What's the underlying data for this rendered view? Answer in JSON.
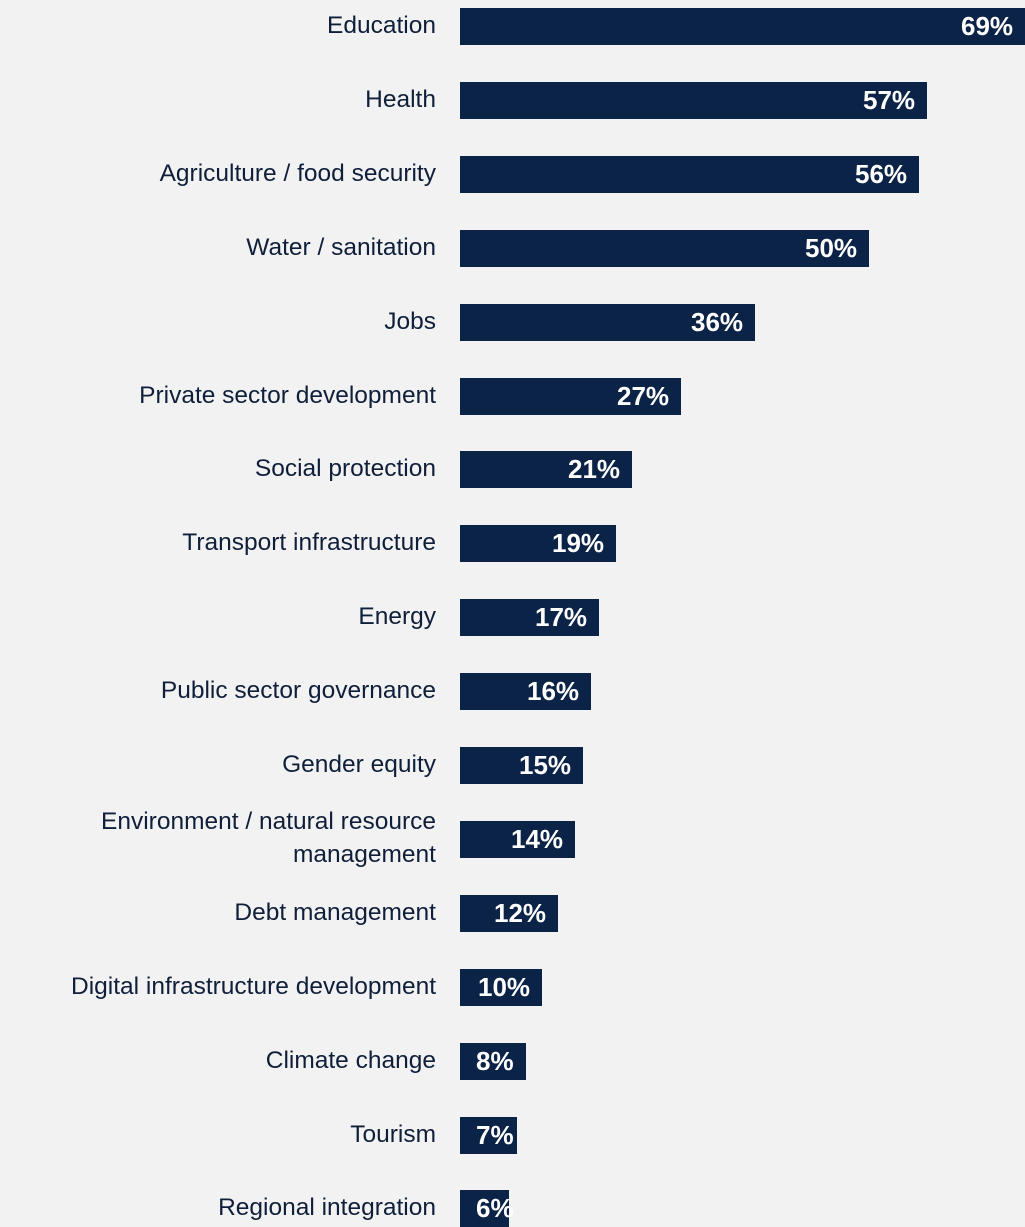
{
  "chart_data": {
    "type": "bar",
    "orientation": "horizontal",
    "categories": [
      "Education",
      "Health",
      "Agriculture / food security",
      "Water / sanitation",
      "Jobs",
      "Private sector development",
      "Social protection",
      "Transport infrastructure",
      "Energy",
      "Public sector governance",
      "Gender equity",
      "Environment / natural resource management",
      "Debt management",
      "Digital infrastructure development",
      "Climate change",
      "Tourism",
      "Regional integration"
    ],
    "values": [
      69,
      57,
      56,
      50,
      36,
      27,
      21,
      19,
      17,
      16,
      15,
      14,
      12,
      10,
      8,
      7,
      6
    ],
    "value_labels": [
      "69%",
      "57%",
      "56%",
      "50%",
      "36%",
      "27%",
      "21%",
      "19%",
      "17%",
      "16%",
      "15%",
      "14%",
      "12%",
      "10%",
      "8%",
      "7%",
      "6%"
    ],
    "unit": "%",
    "xlim": [
      0,
      69
    ],
    "grid": false,
    "bar_color": "#0b2346",
    "label_color": "#0f1f3a",
    "value_label_color": "#ffffff",
    "background": "#f2f2f2"
  }
}
